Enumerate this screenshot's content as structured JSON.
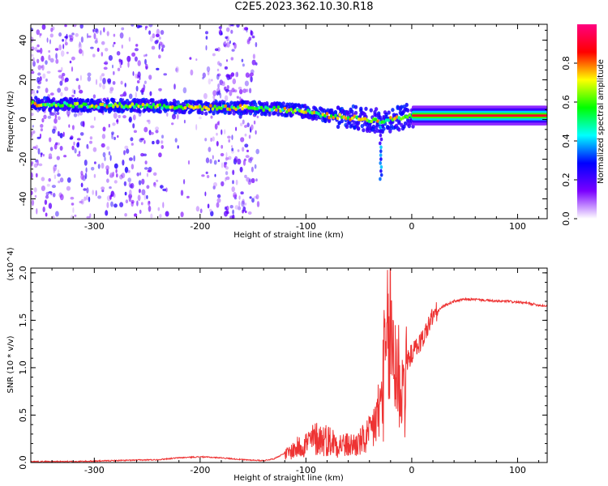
{
  "title": "C2E5.2023.362.10.30.R18",
  "chart_data": [
    {
      "type": "heatmap",
      "xlabel": "Height of straight line (km)",
      "ylabel": "Frequency (Hz)",
      "xlim": [
        -360,
        128
      ],
      "ylim": [
        -50,
        48
      ],
      "xticks": [
        -300,
        -200,
        -100,
        0,
        100
      ],
      "xtick_labels": [
        "-300",
        "-200",
        "-100",
        "0",
        "100"
      ],
      "yticks": [
        -40,
        -20,
        0,
        20,
        40
      ],
      "ytick_labels": [
        "-40",
        "-20",
        "0",
        "20",
        "40"
      ],
      "colorbar": {
        "label": "Normalized spectral amplitude",
        "range": [
          0,
          1
        ],
        "ticks": [
          0.0,
          0.2,
          0.4,
          0.6,
          0.8
        ],
        "tick_labels": [
          "0.0",
          "0.2",
          "0.4",
          "0.6",
          "0.8"
        ],
        "colors": [
          "#ffffff",
          "#7a00ff",
          "#0000ff",
          "#00ffff",
          "#00ff00",
          "#ffff00",
          "#ff0000",
          "#ff0080"
        ]
      },
      "ridge": {
        "x": [
          -360,
          -300,
          -250,
          -200,
          -150,
          -120,
          -100,
          -80,
          -60,
          -40,
          -30,
          -20,
          -10,
          0,
          50,
          128
        ],
        "y": [
          8,
          7,
          7,
          6,
          6,
          5,
          4,
          2,
          1,
          0,
          -1,
          0,
          1,
          2,
          2,
          2
        ]
      }
    },
    {
      "type": "line",
      "xlabel": "Height of straight line (km)",
      "ylabel": "SNR (10 * v/v)",
      "y_multiplier_label": "(x10^4)",
      "xlim": [
        -360,
        128
      ],
      "ylim": [
        0,
        2.05
      ],
      "xticks": [
        -300,
        -200,
        -100,
        0,
        100
      ],
      "xtick_labels": [
        "-300",
        "-200",
        "-100",
        "0",
        "100"
      ],
      "yticks": [
        0.0,
        0.5,
        1.0,
        1.5,
        2.0
      ],
      "ytick_labels": [
        "0.0",
        "0.5",
        "1.0",
        "1.5",
        "2.0"
      ],
      "color": "#ee3333",
      "series": [
        {
          "x": [
            -360,
            -320,
            -280,
            -240,
            -220,
            -200,
            -180,
            -160,
            -140,
            -130,
            -120,
            -110,
            -100,
            -90,
            -80,
            -70,
            -60,
            -50,
            -40,
            -30,
            -25,
            -20,
            -15,
            -10,
            -5,
            0,
            10,
            20,
            30,
            40,
            50,
            60,
            70,
            80,
            90,
            100,
            110,
            120,
            128
          ],
          "y": [
            0.01,
            0.01,
            0.02,
            0.03,
            0.05,
            0.06,
            0.05,
            0.03,
            0.02,
            0.04,
            0.1,
            0.18,
            0.25,
            0.32,
            0.3,
            0.25,
            0.22,
            0.25,
            0.35,
            0.7,
            1.3,
            1.7,
            1.3,
            1.0,
            1.05,
            1.15,
            1.3,
            1.55,
            1.65,
            1.7,
            1.72,
            1.72,
            1.71,
            1.7,
            1.7,
            1.69,
            1.68,
            1.66,
            1.65
          ]
        }
      ]
    }
  ]
}
